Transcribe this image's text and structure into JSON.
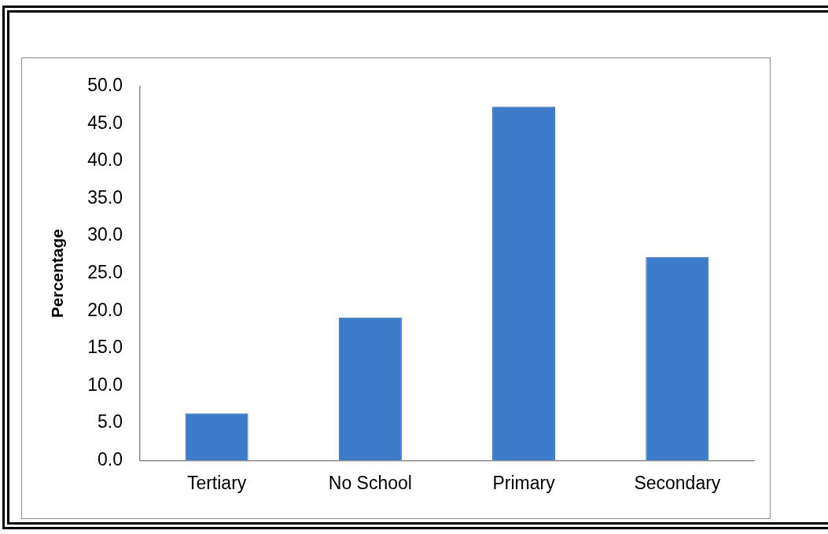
{
  "chart_data": {
    "type": "bar",
    "ylabel": "Percentage",
    "categories": [
      "Tertiary",
      "No School",
      "Primary",
      "Secondary"
    ],
    "values": [
      6.3,
      19.1,
      47.3,
      27.2
    ],
    "color": "#3c7cc9",
    "ylim": [
      0,
      50
    ],
    "yticks": [
      {
        "value": 0,
        "label": "0.0"
      },
      {
        "value": 5,
        "label": "5.0"
      },
      {
        "value": 10,
        "label": "10.0"
      },
      {
        "value": 15,
        "label": "15.0"
      },
      {
        "value": 20,
        "label": "20.0"
      },
      {
        "value": 25,
        "label": "25.0"
      },
      {
        "value": 30,
        "label": "30.0"
      },
      {
        "value": 35,
        "label": "35.0"
      },
      {
        "value": 40,
        "label": "40.0"
      },
      {
        "value": 45,
        "label": "45.0"
      },
      {
        "value": 50,
        "label": "50.0"
      }
    ],
    "grid": false,
    "legend": false
  }
}
